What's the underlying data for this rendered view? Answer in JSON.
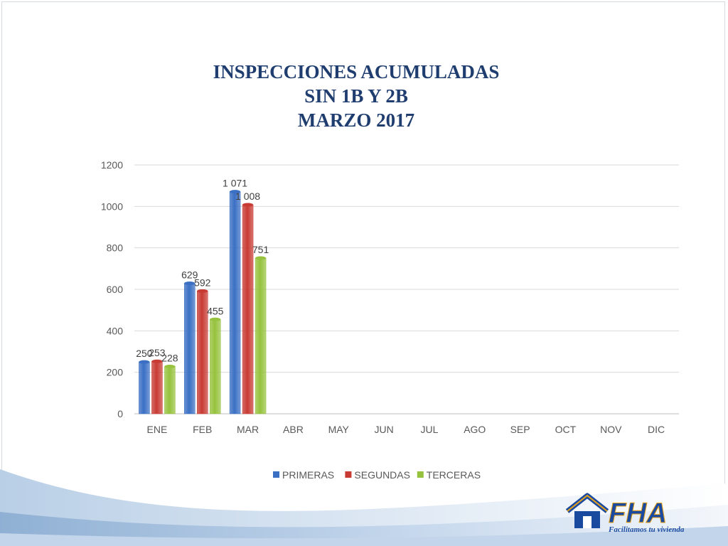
{
  "title_lines": [
    "INSPECCIONES ACUMULADAS",
    "SIN 1B Y 2B",
    "MARZO 2017"
  ],
  "chart_data": {
    "type": "bar",
    "title": "INSPECCIONES ACUMULADAS SIN 1B Y 2B MARZO 2017",
    "categories": [
      "ENE",
      "FEB",
      "MAR",
      "ABR",
      "MAY",
      "JUN",
      "JUL",
      "AGO",
      "SEP",
      "OCT",
      "NOV",
      "DIC"
    ],
    "series": [
      {
        "name": "PRIMERAS",
        "color": "#3a6fc4",
        "values": [
          250,
          629,
          1071,
          null,
          null,
          null,
          null,
          null,
          null,
          null,
          null,
          null
        ],
        "labels": [
          "250",
          "629",
          "1 071"
        ]
      },
      {
        "name": "SEGUNDAS",
        "color": "#c83b34",
        "values": [
          253,
          592,
          1008,
          null,
          null,
          null,
          null,
          null,
          null,
          null,
          null,
          null
        ],
        "labels": [
          "253",
          "592",
          "1 008"
        ]
      },
      {
        "name": "TERCERAS",
        "color": "#96c23d",
        "values": [
          228,
          455,
          751,
          null,
          null,
          null,
          null,
          null,
          null,
          null,
          null,
          null
        ],
        "labels": [
          "228",
          "455",
          "751"
        ]
      }
    ],
    "ylim": [
      0,
      1200
    ],
    "yticks": [
      0,
      200,
      400,
      600,
      800,
      1000,
      1200
    ],
    "grid": true,
    "legend": "bottom"
  },
  "logo": {
    "text": "FHA",
    "tagline": "Facilitamos tu vivienda",
    "color": "#1a4aa0",
    "accent": "#e8a317"
  }
}
